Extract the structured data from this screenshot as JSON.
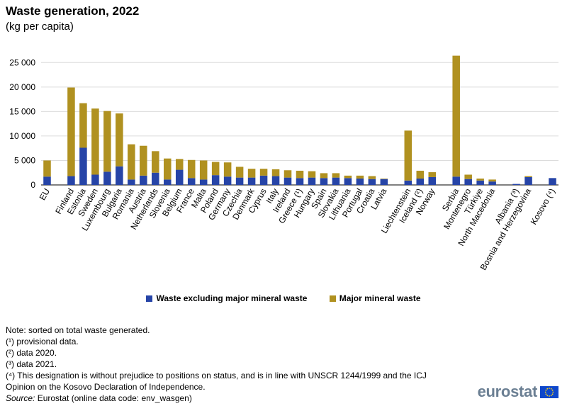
{
  "chart_data": {
    "type": "bar",
    "stacked": true,
    "title": "Waste generation, 2022",
    "subtitle": "(kg per capita)",
    "ylim": [
      0,
      27500
    ],
    "yticks": [
      0,
      5000,
      10000,
      15000,
      20000,
      25000
    ],
    "ytick_labels": [
      "0",
      "5 000",
      "10 000",
      "15 000",
      "20 000",
      "25 000"
    ],
    "xlabel": "",
    "ylabel": "",
    "grid": true,
    "legend_position": "bottom",
    "categories": [
      "EU",
      "",
      "Finland",
      "Estonia",
      "Sweden",
      "Luxembourg",
      "Bulgaria",
      "Romania",
      "Austria",
      "Netherlands",
      "Slovenia",
      "Belgium",
      "France",
      "Malta",
      "Poland",
      "Germany",
      "Czechia",
      "Denmark",
      "Cyprus",
      "Italy",
      "Ireland",
      "Greece (¹)",
      "Hungary",
      "Spain",
      "Slovakia",
      "Lithuania",
      "Portugal",
      "Croatia",
      "Latvia",
      "",
      "Liechtenstein",
      "Iceland (²)",
      "Norway",
      "",
      "Serbia",
      "Montenegro",
      "Türkiye",
      "North Macedonia",
      "",
      "Albania (³)",
      "Bosnia and Herzegovina",
      "",
      "Kosovo (⁴)"
    ],
    "series": [
      {
        "name": "Waste excluding major mineral waste",
        "color": "#2644a7",
        "values": [
          1700,
          null,
          1800,
          7600,
          2100,
          2700,
          3800,
          1100,
          1900,
          2500,
          1100,
          3100,
          1400,
          1100,
          2000,
          1700,
          1500,
          1500,
          1900,
          1800,
          1500,
          1400,
          1500,
          1400,
          1500,
          1400,
          1300,
          1200,
          1200,
          null,
          900,
          1300,
          1600,
          null,
          1700,
          1200,
          900,
          700,
          null,
          200,
          1600,
          null,
          1400
        ]
      },
      {
        "name": "Major mineral waste",
        "color": "#b09120",
        "values": [
          3300,
          null,
          18100,
          9100,
          13500,
          12400,
          10800,
          7200,
          6100,
          4400,
          4300,
          2200,
          3700,
          3900,
          2700,
          2900,
          2200,
          1800,
          1400,
          1400,
          1500,
          1500,
          1300,
          1000,
          900,
          500,
          600,
          600,
          100,
          null,
          10200,
          1600,
          1000,
          null,
          24700,
          900,
          400,
          400,
          null,
          0,
          200,
          null,
          0
        ]
      }
    ]
  },
  "legend": {
    "items": [
      "Waste excluding major mineral waste",
      "Major mineral waste"
    ]
  },
  "notes": {
    "sorted": "Note: sorted on total waste generated.",
    "n1": "(¹) provisional data.",
    "n2": "(²) data 2020.",
    "n3": "(³) data 2021.",
    "n4a": "(⁴) This designation is without prejudice to positions on status, and is in line with UNSCR 1244/1999 and the ICJ",
    "n4b": "Opinion on the Kosovo Declaration of Independence.",
    "source_prefix": "Source:",
    "source_text": " Eurostat (online data code: env_wasgen)"
  },
  "logo": {
    "text": "eurostat",
    "icon": "eu-flag-icon"
  }
}
